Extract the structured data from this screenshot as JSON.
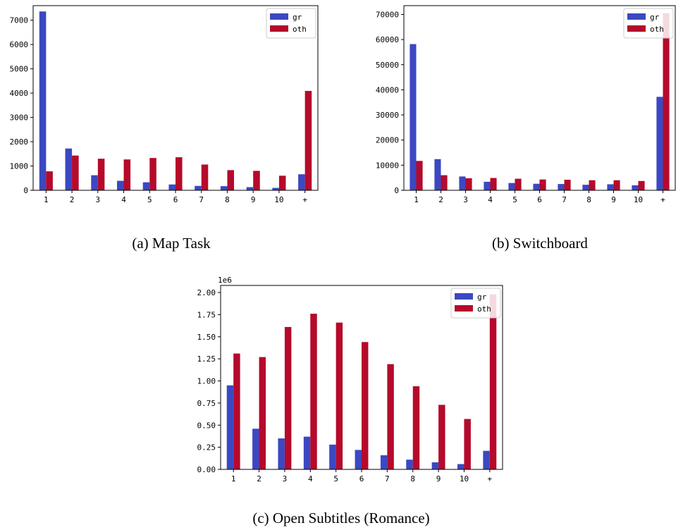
{
  "colors": {
    "gr": "#3b48c2",
    "oth": "#b50a2b"
  },
  "captions": {
    "a": "(a) Map Task",
    "b": "(b) Switchboard",
    "c": "(c) Open Subtitles (Romance)"
  },
  "chart_data": [
    {
      "type": "bar",
      "categories": [
        "1",
        "2",
        "3",
        "4",
        "5",
        "6",
        "7",
        "8",
        "9",
        "10",
        "+"
      ],
      "series": [
        {
          "name": "gr",
          "values": [
            7360,
            1720,
            620,
            390,
            330,
            240,
            180,
            170,
            130,
            100,
            660
          ]
        },
        {
          "name": "oth",
          "values": [
            780,
            1430,
            1300,
            1270,
            1330,
            1360,
            1060,
            830,
            800,
            600,
            4090
          ]
        }
      ],
      "ylim": [
        0,
        7600
      ],
      "yticks": [
        0,
        1000,
        2000,
        3000,
        4000,
        5000,
        6000,
        7000
      ],
      "ytick_labels": [
        "0",
        "1000",
        "2000",
        "3000",
        "4000",
        "5000",
        "6000",
        "7000"
      ],
      "legend": "top-right",
      "caption": "(a) Map Task"
    },
    {
      "type": "bar",
      "categories": [
        "1",
        "2",
        "3",
        "4",
        "5",
        "6",
        "7",
        "8",
        "9",
        "10",
        "+"
      ],
      "series": [
        {
          "name": "gr",
          "values": [
            58200,
            12400,
            5500,
            3400,
            2900,
            2600,
            2500,
            2200,
            2400,
            2000,
            37200
          ]
        },
        {
          "name": "oth",
          "values": [
            11700,
            6000,
            4800,
            4900,
            4600,
            4300,
            4200,
            4000,
            4000,
            3700,
            70500
          ]
        }
      ],
      "ylim": [
        0,
        73500
      ],
      "yticks": [
        0,
        10000,
        20000,
        30000,
        40000,
        50000,
        60000,
        70000
      ],
      "ytick_labels": [
        "0",
        "10000",
        "20000",
        "30000",
        "40000",
        "50000",
        "60000",
        "70000"
      ],
      "legend": "top-right",
      "caption": "(b) Switchboard"
    },
    {
      "type": "bar",
      "categories": [
        "1",
        "2",
        "3",
        "4",
        "5",
        "6",
        "7",
        "8",
        "9",
        "10",
        "+"
      ],
      "series": [
        {
          "name": "gr",
          "values": [
            0.95,
            0.46,
            0.35,
            0.37,
            0.28,
            0.22,
            0.16,
            0.11,
            0.08,
            0.06,
            0.21
          ]
        },
        {
          "name": "oth",
          "values": [
            1.31,
            1.27,
            1.61,
            1.76,
            1.66,
            1.44,
            1.19,
            0.94,
            0.73,
            0.57,
            1.98
          ]
        }
      ],
      "ylim": [
        0,
        2.08
      ],
      "yticks": [
        0,
        0.25,
        0.5,
        0.75,
        1.0,
        1.25,
        1.5,
        1.75,
        2.0
      ],
      "ytick_labels": [
        "0.00",
        "0.25",
        "0.50",
        "0.75",
        "1.00",
        "1.25",
        "1.50",
        "1.75",
        "2.00"
      ],
      "scale_label": "1e6",
      "legend": "top-right",
      "caption": "(c) Open Subtitles (Romance)"
    }
  ]
}
